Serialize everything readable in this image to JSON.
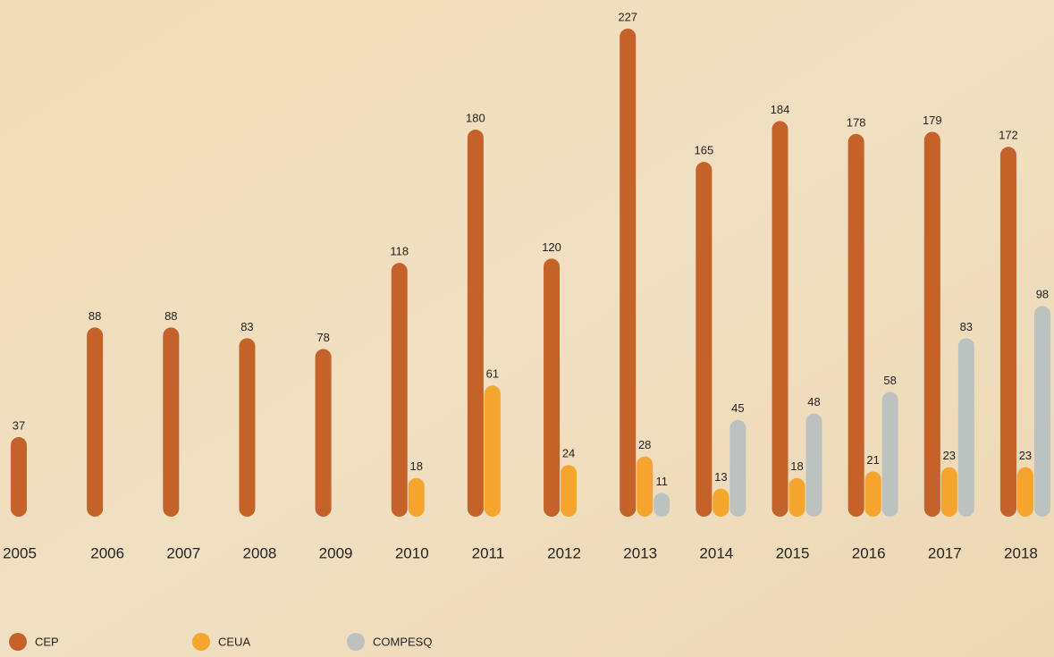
{
  "chart_data": {
    "type": "bar",
    "categories": [
      "2005",
      "2006",
      "2007",
      "2008",
      "2009",
      "2010",
      "2011",
      "2012",
      "2013",
      "2014",
      "2015",
      "2016",
      "2017",
      "2018"
    ],
    "series": [
      {
        "name": "CEP",
        "color": "#c4622a",
        "values": [
          37,
          88,
          88,
          83,
          78,
          118,
          180,
          120,
          227,
          165,
          184,
          178,
          179,
          172
        ]
      },
      {
        "name": "CEUA",
        "color": "#f5a52d",
        "values": [
          null,
          null,
          null,
          null,
          null,
          18,
          61,
          24,
          28,
          13,
          18,
          21,
          23,
          23
        ]
      },
      {
        "name": "COMPESQ",
        "color": "#bcc2c0",
        "values": [
          null,
          null,
          null,
          null,
          null,
          null,
          null,
          null,
          11,
          45,
          48,
          58,
          83,
          98
        ]
      }
    ],
    "ylim": [
      0,
      227
    ],
    "legend": "bottom-left"
  }
}
